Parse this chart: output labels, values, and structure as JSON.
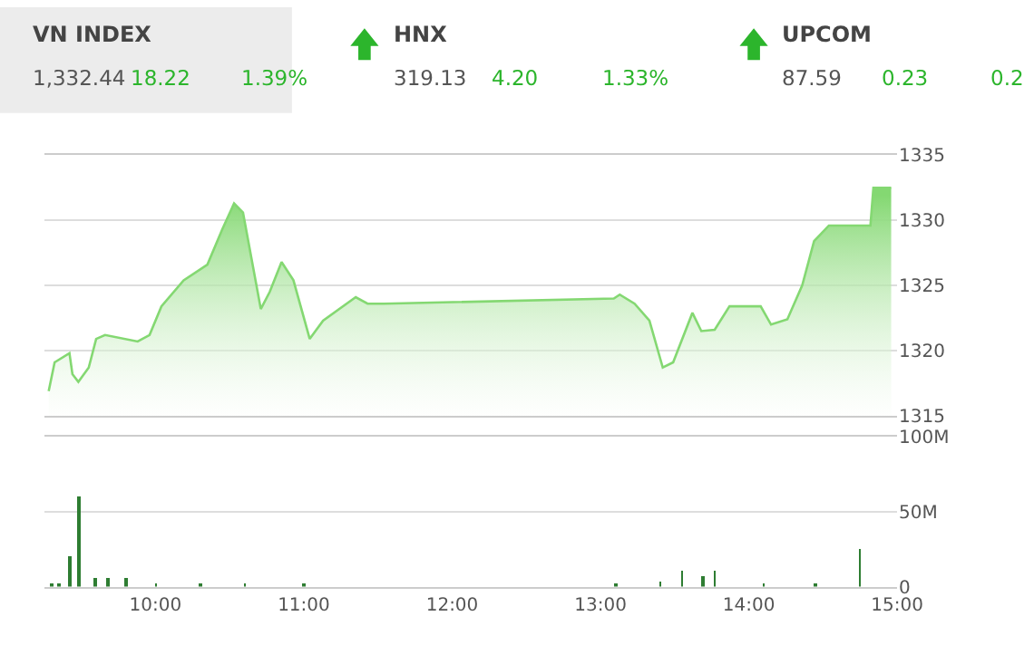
{
  "chart_data": [
    {
      "type": "other",
      "annotations": [
        "VN INDEX",
        "1,332.44",
        "18.22",
        "1.39%",
        "HNX",
        "319.13",
        "4.20",
        "1.33%",
        "UPCOM",
        "87.59",
        "0.23",
        "0.2"
      ],
      "color": "#2cb52c"
    },
    {
      "type": "area",
      "color": "#84d872",
      "x": [
        9.28,
        9.32,
        9.42,
        9.44,
        9.48,
        9.55,
        9.6,
        9.66,
        9.88,
        9.96,
        10.04,
        10.19,
        10.35,
        10.45,
        10.53,
        10.59,
        10.71,
        10.77,
        10.85,
        10.93,
        11.04,
        11.13,
        11.35,
        11.43,
        11.54,
        13.09,
        13.13,
        13.23,
        13.33,
        13.42,
        13.49,
        13.62,
        13.68,
        13.77,
        13.87,
        14.08,
        14.15,
        14.26,
        14.36,
        14.44,
        14.54,
        14.82,
        14.84,
        14.96
      ],
      "values": [
        1316.9,
        1319.1,
        1319.8,
        1318.2,
        1317.6,
        1318.7,
        1320.9,
        1321.2,
        1320.7,
        1321.2,
        1323.4,
        1325.4,
        1326.6,
        1329.3,
        1331.3,
        1330.6,
        1323.2,
        1324.5,
        1326.8,
        1325.4,
        1320.9,
        1322.3,
        1324.1,
        1323.6,
        1323.6,
        1324.0,
        1324.3,
        1323.6,
        1322.3,
        1318.7,
        1319.1,
        1322.9,
        1321.5,
        1321.6,
        1323.4,
        1323.4,
        1322.0,
        1322.4,
        1325.0,
        1328.4,
        1329.6,
        1329.6,
        1332.5,
        1332.5
      ],
      "xlim": [
        9.25,
        15
      ],
      "ylim": [
        1315,
        1335
      ],
      "yticks": [
        1315,
        1320,
        1325,
        1330,
        1335
      ],
      "grid": "y",
      "tick_labels": "y"
    },
    {
      "type": "bar",
      "color": "#2e7d32",
      "x": [
        9.3,
        9.35,
        9.42,
        9.48,
        9.59,
        9.68,
        9.8,
        10.0,
        10.3,
        10.6,
        11.0,
        13.1,
        13.4,
        13.55,
        13.69,
        13.77,
        14.1,
        14.45,
        14.75
      ],
      "values": [
        2,
        1,
        20,
        60,
        6,
        6,
        6,
        1,
        1,
        1,
        1,
        1,
        3,
        10,
        7,
        10,
        1,
        2,
        25
      ],
      "xlim": [
        9.25,
        15
      ],
      "xticks": [
        {
          "value": 10,
          "label": "10:00"
        },
        {
          "value": 11,
          "label": "11:00"
        },
        {
          "value": 12,
          "label": "12:00"
        },
        {
          "value": 13,
          "label": "13:00"
        },
        {
          "value": 14,
          "label": "14:00"
        },
        {
          "value": 15,
          "label": "15:00"
        }
      ],
      "ylim": [
        0,
        100
      ],
      "yticks": [
        {
          "value": 0,
          "label": "0"
        },
        {
          "value": 50,
          "label": "50M"
        },
        {
          "value": 100,
          "label": "100M"
        }
      ],
      "grid": "y"
    }
  ]
}
